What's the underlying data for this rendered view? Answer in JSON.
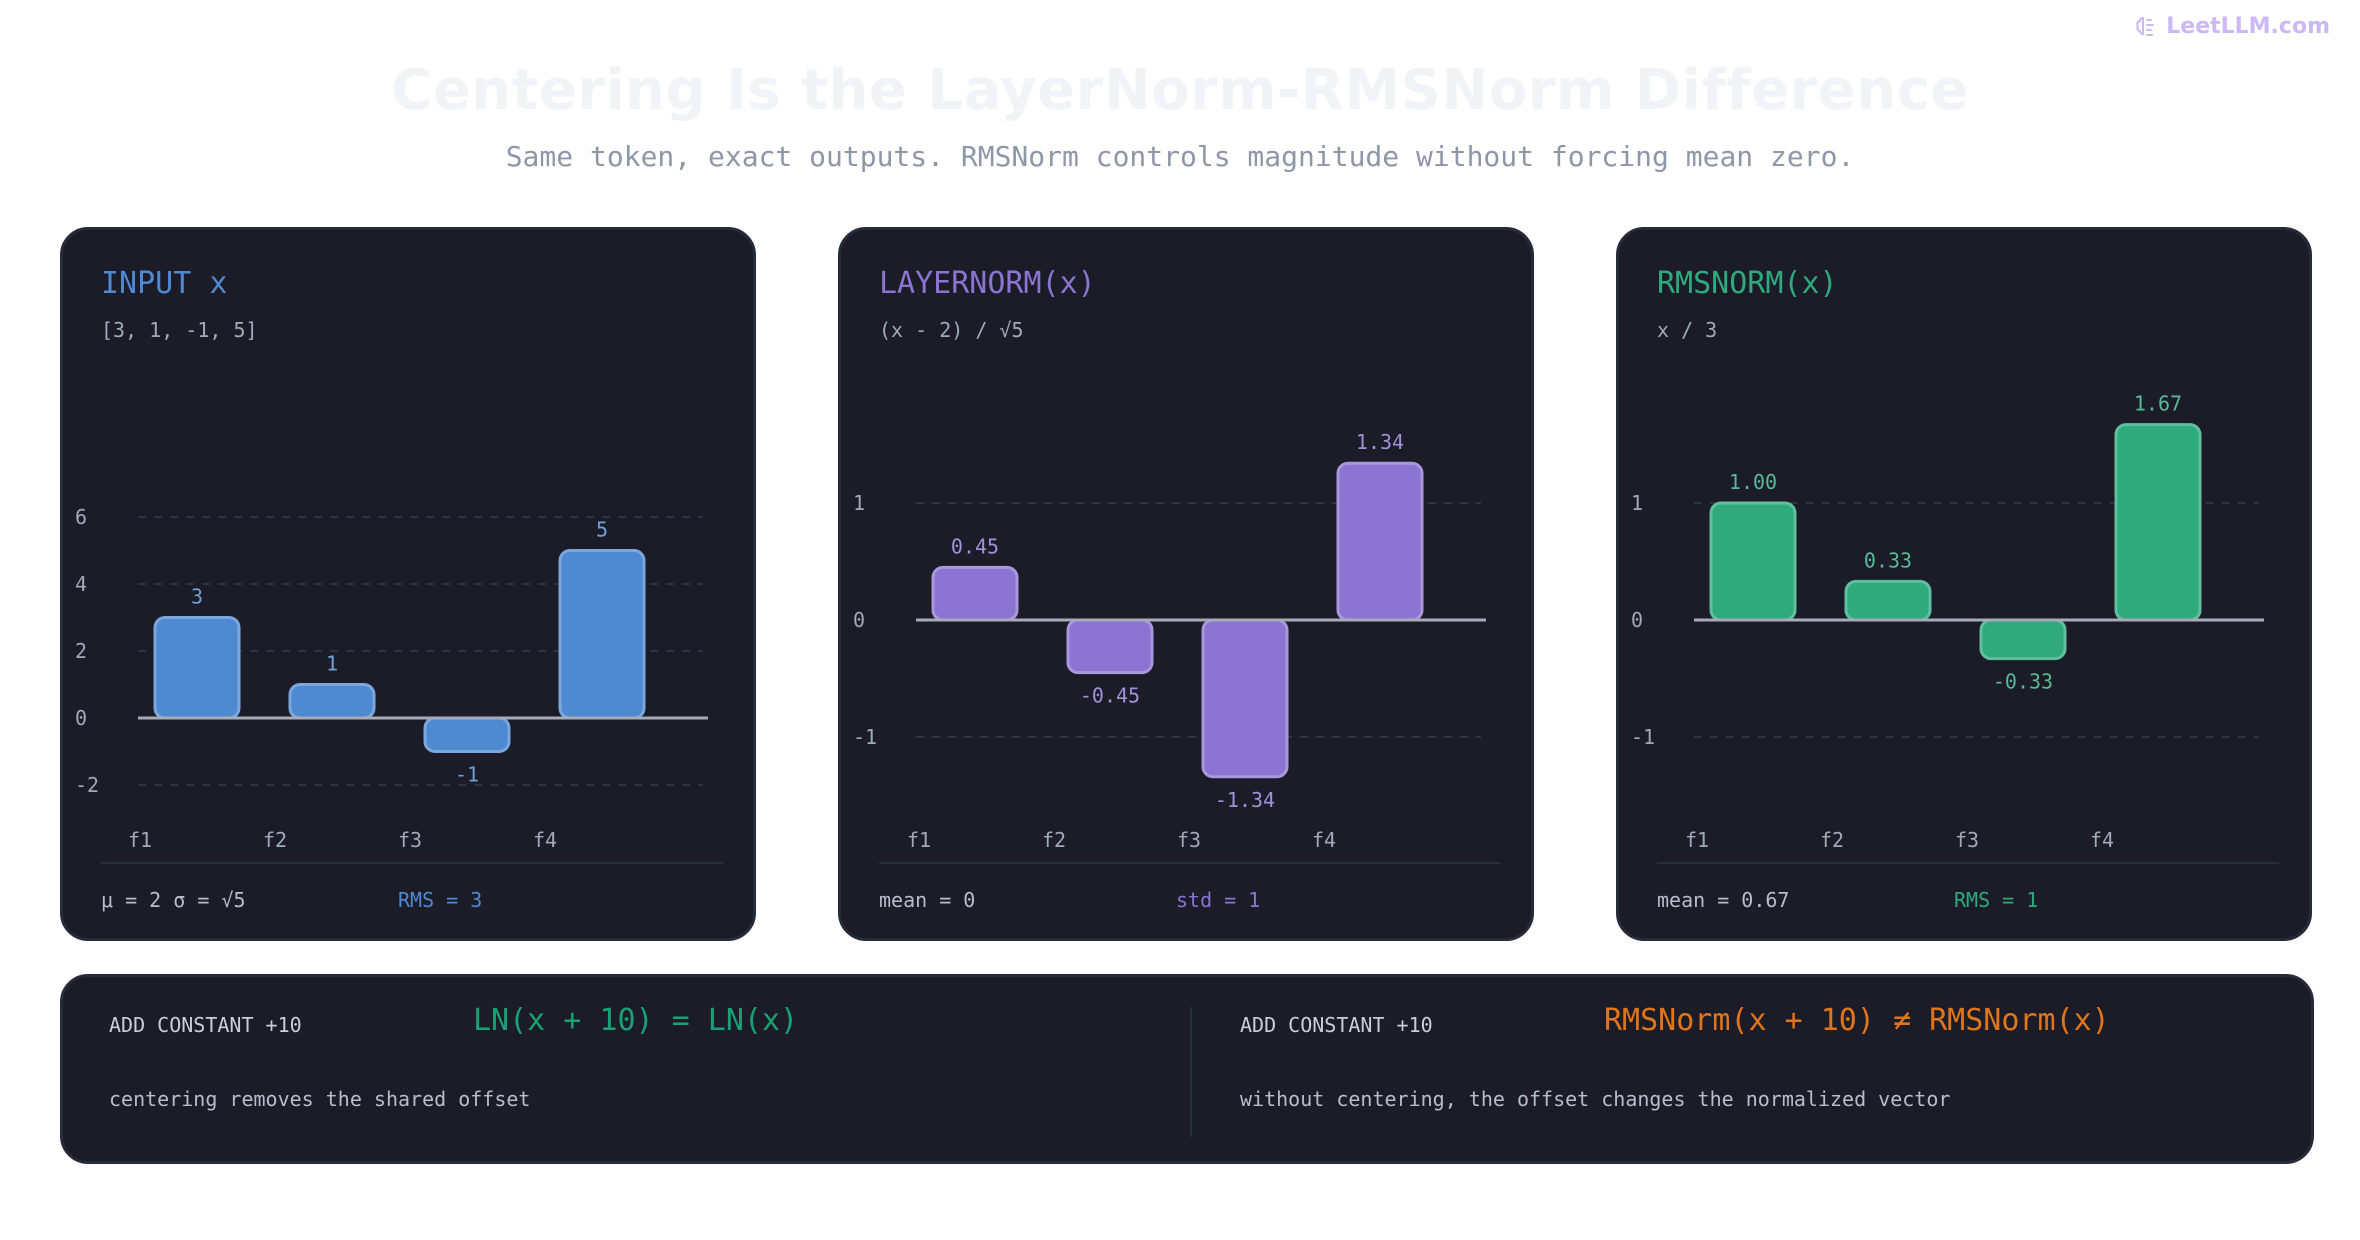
{
  "brand": {
    "text": "LeetLLM.com",
    "icon": "brain-icon"
  },
  "title": "Centering Is the LayerNorm-RMSNorm Difference",
  "subtitle": "Same token, exact outputs. RMSNorm controls magnitude without forcing mean zero.",
  "colors": {
    "input": "#4f89d1",
    "layernorm": "#8c74d2",
    "rmsnorm": "#2eaa7d",
    "warn": "#e0751a",
    "ok": "#1aa173"
  },
  "panels": [
    {
      "title": "INPUT x",
      "formula": "[3, 1, -1, 5]",
      "stat1": "μ = 2 σ = √5",
      "stat2": "RMS = 3",
      "color": "#4f89d1",
      "chart_data": {
        "type": "bar",
        "categories": [
          "f1",
          "f2",
          "f3",
          "f4"
        ],
        "values": [
          3,
          1,
          -1,
          5
        ],
        "value_labels": [
          "3",
          "1",
          "-1",
          "5"
        ],
        "yticks": [
          6,
          4,
          2,
          0,
          -2
        ],
        "ylim": [
          -2,
          6
        ]
      }
    },
    {
      "title": "LAYERNORM(x)",
      "formula": "(x - 2) / √5",
      "stat1": "mean = 0",
      "stat2": "std = 1",
      "color": "#8c74d2",
      "chart_data": {
        "type": "bar",
        "categories": [
          "f1",
          "f2",
          "f3",
          "f4"
        ],
        "values": [
          0.45,
          -0.45,
          -1.34,
          1.34
        ],
        "value_labels": [
          "0.45",
          "-0.45",
          "-1.34",
          "1.34"
        ],
        "yticks": [
          1,
          0,
          -1
        ],
        "ylim": [
          -1.5,
          2
        ]
      }
    },
    {
      "title": "RMSNORM(x)",
      "formula": "x / 3",
      "stat1": "mean = 0.67",
      "stat2": "RMS = 1",
      "color": "#2eaa7d",
      "chart_data": {
        "type": "bar",
        "categories": [
          "f1",
          "f2",
          "f3",
          "f4"
        ],
        "values": [
          1.0,
          0.33,
          -0.33,
          1.67
        ],
        "value_labels": [
          "1.00",
          "0.33",
          "-0.33",
          "1.67"
        ],
        "yticks": [
          1,
          0,
          -1
        ],
        "ylim": [
          -1.5,
          2
        ]
      }
    }
  ],
  "bottom": {
    "left": {
      "label": "ADD CONSTANT +10",
      "equation": "LN(x + 10) = LN(x)",
      "description": "centering removes the shared offset"
    },
    "right": {
      "label": "ADD CONSTANT +10",
      "equation": "RMSNorm(x + 10) ≠ RMSNorm(x)",
      "description": "without centering, the offset changes the normalized vector"
    }
  }
}
